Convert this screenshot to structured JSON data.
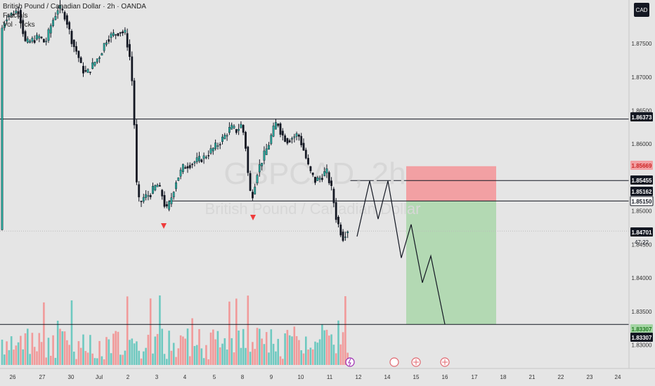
{
  "legend": {
    "title": "British Pound / Canadian Dollar · 2h · OANDA",
    "line2": "Fractals",
    "line3": "Vol · Ticks"
  },
  "currency_button": "CAD",
  "watermark": {
    "symbol": "GBPCAD, 2h",
    "name": "British Pound / Canadian Dollar"
  },
  "countdown": "47:22",
  "chart_data": {
    "type": "candlestick",
    "price_axis_ticks": [
      "1.87500",
      "1.87000",
      "1.86500",
      "1.86000",
      "1.85500",
      "1.85000",
      "1.84500",
      "1.84000",
      "1.83500",
      "1.83000"
    ],
    "time_axis_ticks": [
      "26",
      "27",
      "30",
      "Jul",
      "2",
      "3",
      "4",
      "5",
      "8",
      "9",
      "10",
      "11",
      "12",
      "14",
      "15",
      "16",
      "17",
      "18",
      "21",
      "22",
      "23",
      "24",
      "25"
    ],
    "ylim": [
      1.8265,
      1.8815
    ],
    "horizontal_levels": [
      1.86373,
      1.85455,
      1.8515,
      1.83307
    ],
    "price_labels": [
      {
        "value": 1.86373,
        "text": "1.86373",
        "style": "dark"
      },
      {
        "value": 1.85669,
        "text": "1.85669",
        "style": "red"
      },
      {
        "value": 1.85455,
        "text": "1.85455",
        "style": "dark"
      },
      {
        "value": 1.85162,
        "text": "1.85162",
        "style": "dark"
      },
      {
        "value": 1.8515,
        "text": "1.85150",
        "style": "outline"
      },
      {
        "value": 1.84701,
        "text": "1.84701",
        "style": "dark"
      },
      {
        "value": 1.83307,
        "text": "1.83307",
        "style": "green"
      },
      {
        "value": 1.83307,
        "text": "1.83307",
        "style": "dark"
      }
    ],
    "short_position": {
      "entry": 1.8515,
      "stop": 1.85669,
      "target": 1.83307
    },
    "projected_path": [
      1.8462,
      1.8545,
      1.8488,
      1.8545,
      1.843,
      1.848,
      1.8393,
      1.8433,
      1.8331
    ],
    "fractal_markers": 2,
    "colors": {
      "up": "#26a69a",
      "down": "#131722",
      "vol_up": "#6ec9c0",
      "vol_down": "#f19a9a",
      "stop_zone": "#f2a0a3",
      "target_zone": "#b3d9b3"
    }
  }
}
